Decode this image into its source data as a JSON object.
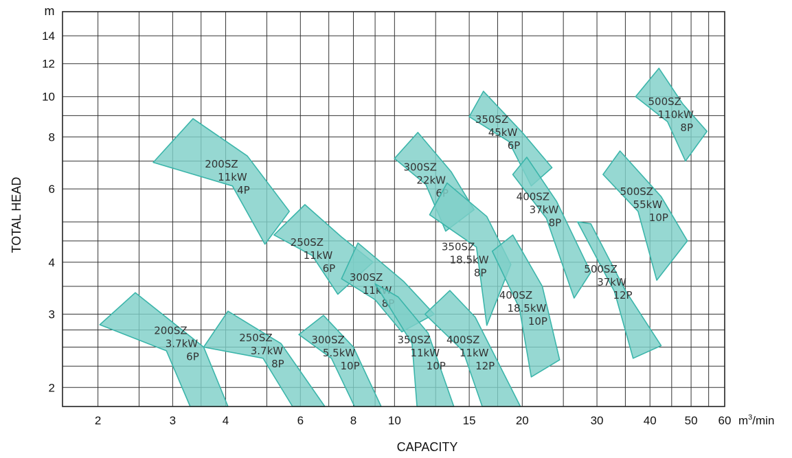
{
  "chart_data": {
    "type": "area",
    "title": "",
    "xlabel": "CAPACITY",
    "ylabel": "TOTAL HEAD",
    "x_unit": "m³/min",
    "y_unit": "m",
    "x_scale": "log",
    "y_scale": "log",
    "xlim": [
      1.65,
      60
    ],
    "ylim": [
      1.8,
      16
    ],
    "grid": true,
    "x_ticks": [
      2,
      3,
      4,
      6,
      8,
      10,
      15,
      20,
      30,
      40,
      50,
      60
    ],
    "y_ticks": [
      2,
      3,
      4,
      6,
      8,
      10,
      12,
      14
    ],
    "x_tick_labels": [
      "2",
      "3",
      "4",
      "6",
      "8",
      "10",
      "15",
      "20",
      "30",
      "40",
      "50",
      "60"
    ],
    "y_tick_labels": [
      "2",
      "3",
      "4",
      "6",
      "8",
      "10",
      "12",
      "14"
    ],
    "x_gridlines": [
      2,
      2.5,
      3,
      3.5,
      4,
      5,
      6,
      7,
      8,
      9,
      10,
      12.5,
      15,
      17.5,
      20,
      25,
      30,
      35,
      40,
      45,
      50,
      55
    ],
    "y_gridlines": [
      2,
      2.25,
      2.5,
      2.75,
      3,
      3.5,
      4,
      4.5,
      5,
      6,
      7,
      8,
      9,
      10,
      12,
      14
    ],
    "fill_color": "#7fd0c8",
    "stroke_color": "#3bb5aa",
    "series": [
      {
        "name": "200SZ 3.7kW 6P",
        "label": [
          "200SZ",
          "3.7kW",
          "6P"
        ],
        "label_at": [
          3.15,
          2.55
        ],
        "polygon": [
          [
            2.02,
            2.83
          ],
          [
            2.45,
            3.38
          ],
          [
            3.55,
            2.5
          ],
          [
            4.05,
            1.8
          ],
          [
            3.3,
            1.8
          ],
          [
            2.9,
            2.45
          ]
        ]
      },
      {
        "name": "250SZ 3.7kW 8P",
        "label": [
          "250SZ",
          "3.7kW",
          "8P"
        ],
        "label_at": [
          5.0,
          2.45
        ],
        "polygon": [
          [
            3.55,
            2.5
          ],
          [
            4.05,
            3.05
          ],
          [
            5.4,
            2.55
          ],
          [
            6.85,
            1.8
          ],
          [
            5.75,
            1.8
          ],
          [
            4.9,
            2.35
          ]
        ]
      },
      {
        "name": "300SZ 5.5kW 10P",
        "label": [
          "300SZ",
          "5.5kW",
          "10P"
        ],
        "label_at": [
          7.4,
          2.42
        ],
        "polygon": [
          [
            5.95,
            2.68
          ],
          [
            6.8,
            2.98
          ],
          [
            8.0,
            2.5
          ],
          [
            9.3,
            1.8
          ],
          [
            8.05,
            1.8
          ],
          [
            7.1,
            2.35
          ]
        ]
      },
      {
        "name": "200SZ 11kW 4P",
        "label": [
          "200SZ",
          "11kW",
          "4P"
        ],
        "label_at": [
          4.15,
          6.4
        ],
        "polygon": [
          [
            2.7,
            6.95
          ],
          [
            3.35,
            8.85
          ],
          [
            4.5,
            7.2
          ],
          [
            5.65,
            5.3
          ],
          [
            4.95,
            4.42
          ],
          [
            4.15,
            6.1
          ]
        ]
      },
      {
        "name": "250SZ 11kW 6P",
        "label": [
          "250SZ",
          "11kW",
          "6P"
        ],
        "label_at": [
          6.6,
          4.15
        ],
        "polygon": [
          [
            5.2,
            4.65
          ],
          [
            6.15,
            5.5
          ],
          [
            7.5,
            4.6
          ],
          [
            8.9,
            4.0
          ],
          [
            7.35,
            3.35
          ],
          [
            6.4,
            4.15
          ]
        ]
      },
      {
        "name": "300SZ 11kW 8P",
        "label": [
          "300SZ",
          "11kW",
          "8P"
        ],
        "label_at": [
          9.1,
          3.42
        ],
        "polygon": [
          [
            7.5,
            3.65
          ],
          [
            8.2,
            4.45
          ],
          [
            10.5,
            3.6
          ],
          [
            12.4,
            3.0
          ],
          [
            10.4,
            2.72
          ],
          [
            9.0,
            3.25
          ]
        ]
      },
      {
        "name": "350SZ 11kW 10P",
        "label": [
          "350SZ",
          "11kW",
          "10P"
        ],
        "label_at": [
          11.8,
          2.42
        ],
        "polygon": [
          [
            9.0,
            3.55
          ],
          [
            10.2,
            3.3
          ],
          [
            12.0,
            2.7
          ],
          [
            13.8,
            1.8
          ],
          [
            11.3,
            1.8
          ],
          [
            11.0,
            2.55
          ]
        ]
      },
      {
        "name": "400SZ 11kW 12P",
        "label": [
          "400SZ",
          "11kW",
          "12P"
        ],
        "label_at": [
          15.4,
          2.42
        ],
        "polygon": [
          [
            11.8,
            3.0
          ],
          [
            13.5,
            3.42
          ],
          [
            15.5,
            2.95
          ],
          [
            19.8,
            1.8
          ],
          [
            16.1,
            1.8
          ],
          [
            14.5,
            2.45
          ]
        ]
      },
      {
        "name": "300SZ 22kW 6P",
        "label": [
          "300SZ",
          "22kW",
          "6P"
        ],
        "label_at": [
          12.2,
          6.3
        ],
        "polygon": [
          [
            10.0,
            7.1
          ],
          [
            11.35,
            8.2
          ],
          [
            13.6,
            6.6
          ],
          [
            15.4,
            5.35
          ],
          [
            13.2,
            4.75
          ],
          [
            11.85,
            6.15
          ]
        ]
      },
      {
        "name": "350SZ 18.5kW 8P",
        "label": [
          "350SZ",
          "18.5kW",
          "8P"
        ],
        "label_at": [
          15.0,
          4.05
        ],
        "polygon": [
          [
            12.1,
            5.2
          ],
          [
            13.3,
            6.2
          ],
          [
            16.5,
            5.15
          ],
          [
            18.8,
            3.95
          ],
          [
            16.5,
            2.82
          ],
          [
            15.6,
            4.35
          ]
        ]
      },
      {
        "name": "350SZ 45kW 6P",
        "label": [
          "350SZ",
          "45kW",
          "6P"
        ],
        "label_at": [
          18.0,
          8.2
        ],
        "polygon": [
          [
            15.0,
            8.95
          ],
          [
            16.2,
            10.3
          ],
          [
            20.0,
            8.2
          ],
          [
            23.5,
            6.75
          ],
          [
            21.0,
            6.1
          ],
          [
            18.6,
            7.8
          ]
        ]
      },
      {
        "name": "400SZ 37kW 8P",
        "label": [
          "400SZ",
          "37kW",
          "8P"
        ],
        "label_at": [
          22.5,
          5.35
        ],
        "polygon": [
          [
            19.0,
            6.5
          ],
          [
            20.5,
            7.15
          ],
          [
            24.1,
            5.6
          ],
          [
            29.0,
            3.78
          ],
          [
            26.5,
            3.28
          ],
          [
            22.8,
            5.1
          ]
        ]
      },
      {
        "name": "400SZ 18.5kW 10P",
        "label": [
          "400SZ",
          "18.5kW",
          "10P"
        ],
        "label_at": [
          20.5,
          3.1
        ],
        "polygon": [
          [
            17.0,
            4.25
          ],
          [
            19.0,
            4.65
          ],
          [
            22.3,
            3.5
          ],
          [
            24.5,
            2.33
          ],
          [
            21.0,
            2.12
          ],
          [
            19.7,
            3.1
          ]
        ]
      },
      {
        "name": "500SZ 110kW 8P",
        "label": [
          "500SZ",
          "110kW",
          "8P"
        ],
        "label_at": [
          46.0,
          9.05
        ],
        "polygon": [
          [
            37.0,
            10.0
          ],
          [
            42.0,
            11.7
          ],
          [
            47.8,
            9.6
          ],
          [
            54.5,
            8.25
          ],
          [
            48.5,
            7.0
          ],
          [
            44.0,
            8.7
          ]
        ]
      },
      {
        "name": "500SZ 55kW 10P",
        "label": [
          "500SZ",
          "55kW",
          "10P"
        ],
        "label_at": [
          39.5,
          5.5
        ],
        "polygon": [
          [
            31.0,
            6.5
          ],
          [
            34.0,
            7.4
          ],
          [
            42.5,
            5.75
          ],
          [
            49.0,
            4.5
          ],
          [
            41.5,
            3.62
          ],
          [
            37.5,
            5.3
          ]
        ]
      },
      {
        "name": "500SZ 37kW 12P",
        "label": [
          "500SZ",
          "37kW",
          "12P"
        ],
        "label_at": [
          32.5,
          3.58
        ],
        "polygon": [
          [
            27.0,
            5.0
          ],
          [
            29.0,
            4.95
          ],
          [
            35.0,
            3.42
          ],
          [
            42.5,
            2.52
          ],
          [
            36.5,
            2.35
          ],
          [
            33.0,
            3.4
          ]
        ]
      }
    ]
  }
}
